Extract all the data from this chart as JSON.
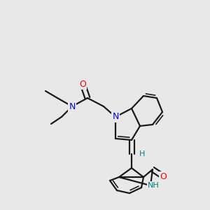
{
  "background_color": "#e8e8e8",
  "bond_color": "#1a1a1a",
  "atom_colors": {
    "N": "#0000ff",
    "O": "#ff0000",
    "NH": "#008080",
    "H": "#008080"
  },
  "figsize": [
    3.0,
    3.0
  ],
  "dpi": 100
}
